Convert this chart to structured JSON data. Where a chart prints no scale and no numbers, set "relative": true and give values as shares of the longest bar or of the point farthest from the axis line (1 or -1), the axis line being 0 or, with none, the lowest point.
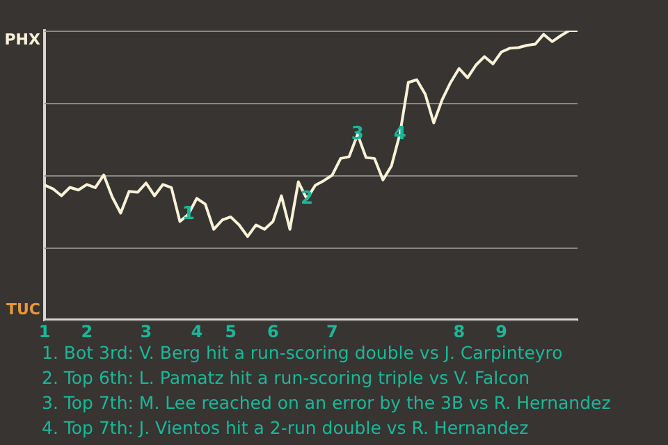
{
  "chart_data": {
    "type": "line",
    "relative": true,
    "grid": "y",
    "categories": [
      "1",
      null,
      null,
      null,
      null,
      "2",
      null,
      null,
      null,
      null,
      null,
      null,
      "3",
      null,
      null,
      null,
      null,
      null,
      "4",
      null,
      null,
      null,
      "5",
      null,
      null,
      null,
      null,
      "6",
      null,
      null,
      null,
      null,
      null,
      null,
      "7",
      null,
      null,
      null,
      null,
      null,
      null,
      null,
      null,
      null,
      null,
      null,
      null,
      null,
      null,
      "8",
      null,
      null,
      null,
      null,
      "9",
      null,
      null,
      null,
      null,
      null,
      null,
      null,
      null,
      null
    ],
    "series": [
      {
        "color": "#f8f3d8",
        "values": [
          0.466,
          0.453,
          0.429,
          0.458,
          0.449,
          0.468,
          0.457,
          0.501,
          0.425,
          0.369,
          0.444,
          0.441,
          0.473,
          0.429,
          0.468,
          0.457,
          0.34,
          0.365,
          0.42,
          0.4,
          0.313,
          0.345,
          0.356,
          0.328,
          0.288,
          0.328,
          0.313,
          0.34,
          0.429,
          0.313,
          0.477,
          0.418,
          0.465,
          0.481,
          0.5,
          0.558,
          0.564,
          0.641,
          0.561,
          0.558,
          0.484,
          0.532,
          0.642,
          0.821,
          0.83,
          0.78,
          0.681,
          0.761,
          0.821,
          0.869,
          0.837,
          0.881,
          0.91,
          0.885,
          0.926,
          0.939,
          0.941,
          0.949,
          0.953,
          0.987,
          0.962,
          0.982,
          1,
          1
        ]
      }
    ],
    "annotations": [
      "PHX",
      "TUC",
      {
        "text": "1",
        "y": 0.365
      },
      {
        "text": "2",
        "y": 0.418
      },
      {
        "text": "3",
        "y": 0.641
      },
      {
        "text": "4",
        "y": 0.642
      },
      "1. Bot 3rd: V. Berg hit a run-scoring double vs J. Carpinteyro",
      "2. Top 6th: L. Pamatz hit a run-scoring triple vs V. Falcon",
      "3. Top 7th: M. Lee reached on an error by the 3B vs R. Hernandez",
      "4. Top 7th: J. Vientos hit a 2-run double vs R. Hernandez"
    ]
  }
}
